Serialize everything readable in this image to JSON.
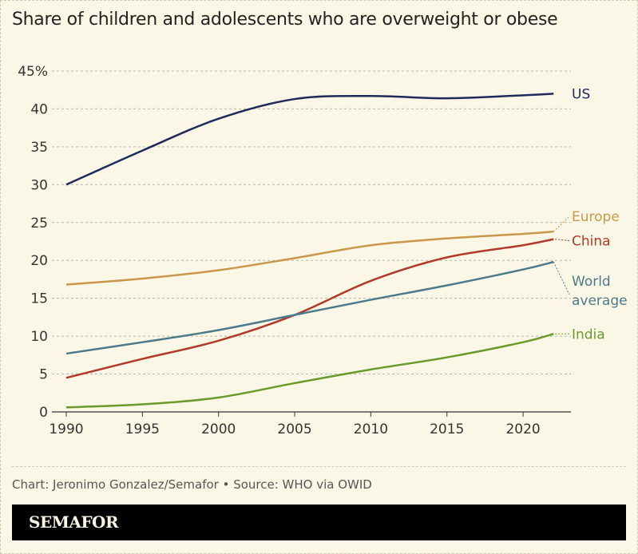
{
  "chart_data": {
    "type": "line",
    "title": "Share of children and adolescents who are overweight or obese",
    "x": [
      1990,
      1995,
      2000,
      2005,
      2010,
      2015,
      2020,
      2022
    ],
    "x_ticks": [
      "1990",
      "1995",
      "2000",
      "2005",
      "2010",
      "2015",
      "2020"
    ],
    "y_ticks": [
      "0",
      "5",
      "10",
      "15",
      "20",
      "25",
      "30",
      "35",
      "40",
      "45%"
    ],
    "ylim": [
      0,
      45
    ],
    "xlim": [
      1990,
      2022
    ],
    "grid": "horizontal dashed",
    "legend": "direct labels at line ends",
    "series": [
      {
        "name": "US",
        "color": "#1f2a5c",
        "values": [
          30.0,
          34.5,
          38.7,
          41.3,
          41.7,
          41.4,
          41.8,
          42.0
        ]
      },
      {
        "name": "Europe",
        "color": "#c9974a",
        "values": [
          16.8,
          17.6,
          18.7,
          20.3,
          22.0,
          22.9,
          23.5,
          23.8
        ]
      },
      {
        "name": "China",
        "color": "#b23a2a",
        "values": [
          4.5,
          7.0,
          9.4,
          12.8,
          17.3,
          20.4,
          22.0,
          22.8
        ]
      },
      {
        "name": "World average",
        "label_lines": [
          "World",
          "average"
        ],
        "color": "#4a7a8c",
        "values": [
          7.7,
          9.2,
          10.8,
          12.8,
          14.8,
          16.7,
          18.8,
          19.8
        ]
      },
      {
        "name": "India",
        "color": "#6a9a2a",
        "values": [
          0.6,
          1.0,
          1.9,
          3.8,
          5.6,
          7.2,
          9.2,
          10.3
        ]
      }
    ]
  },
  "footer": {
    "credit": "Chart: Jeronimo Gonzalez/Semafor • Source: WHO via OWID",
    "brand": "SEMAFOR"
  }
}
